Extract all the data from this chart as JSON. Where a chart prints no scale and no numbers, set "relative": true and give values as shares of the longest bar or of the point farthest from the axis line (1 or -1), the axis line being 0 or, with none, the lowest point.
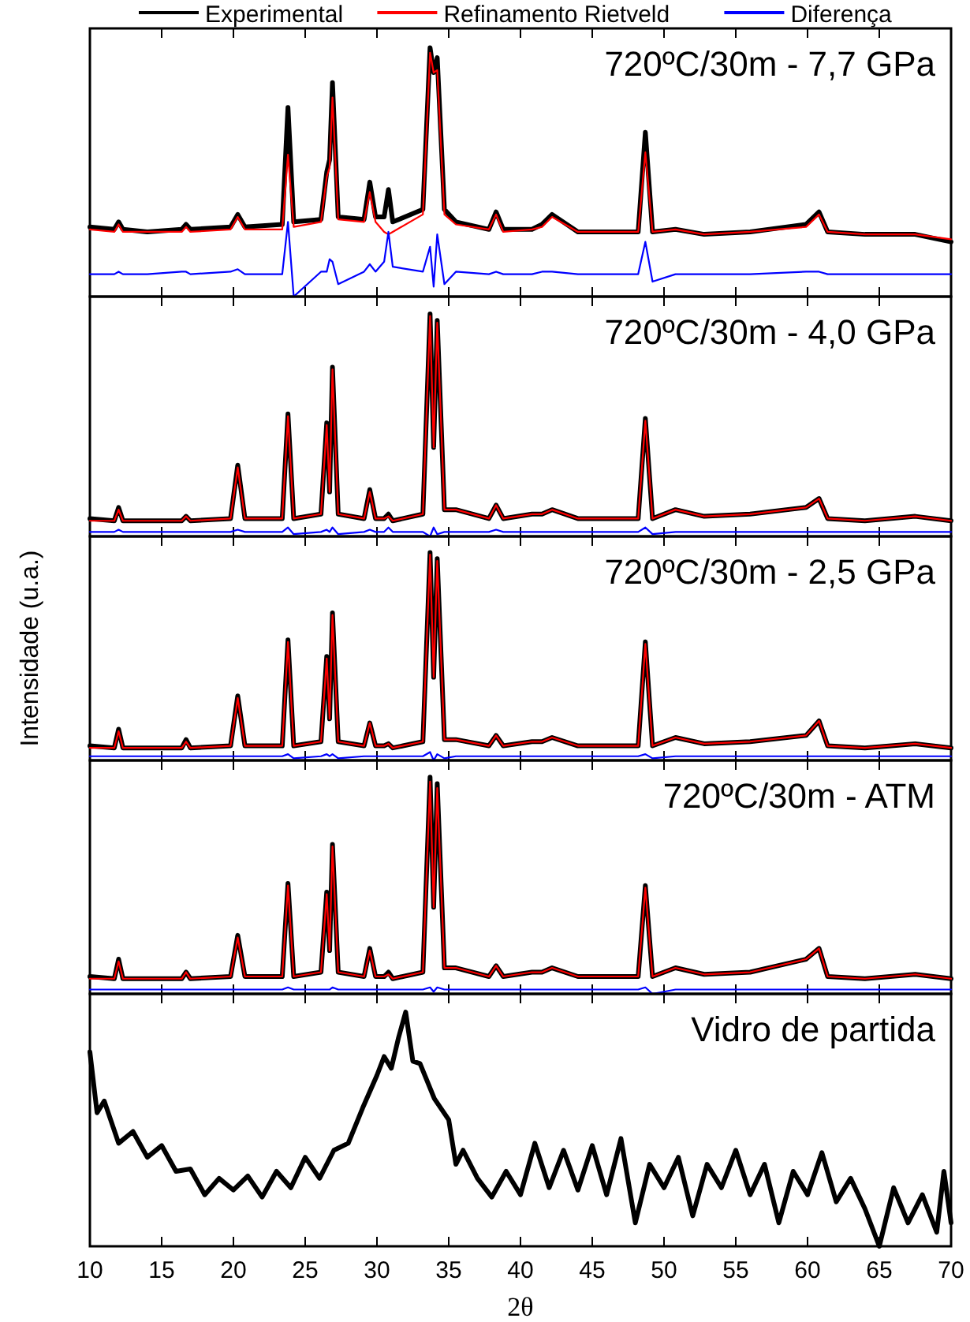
{
  "chart_data": [
    {
      "type": "line",
      "relative": true,
      "title": "720ºC/30m - 7,7 GPa",
      "legend": "top",
      "tick_labels": false,
      "xlim": [
        10,
        70
      ],
      "xticks": [
        10,
        15,
        20,
        25,
        30,
        35,
        40,
        45,
        50,
        55,
        60,
        65,
        70
      ],
      "x": [
        10,
        11.7,
        12,
        12.3,
        14,
        16.4,
        16.7,
        17,
        19.8,
        20.3,
        20.8,
        23.4,
        23.8,
        24.2,
        26.1,
        26.5,
        26.7,
        26.9,
        27.3,
        29.1,
        29.5,
        29.9,
        30.5,
        30.8,
        31.1,
        33.2,
        33.7,
        33.95,
        34.2,
        34.7,
        35.5,
        37.8,
        38.3,
        38.8,
        40.8,
        41.5,
        42.2,
        44,
        48.2,
        48.7,
        49.2,
        50.8,
        52.8,
        56,
        59.9,
        60.8,
        61.4,
        64,
        67.5,
        70
      ],
      "series": [
        {
          "name": "Experimental",
          "color": "#000000",
          "values": [
            0.28,
            0.27,
            0.3,
            0.27,
            0.26,
            0.27,
            0.29,
            0.27,
            0.28,
            0.33,
            0.28,
            0.29,
            0.76,
            0.3,
            0.31,
            0.5,
            0.55,
            0.86,
            0.32,
            0.31,
            0.46,
            0.32,
            0.32,
            0.43,
            0.3,
            0.35,
            1.0,
            0.9,
            0.96,
            0.35,
            0.3,
            0.27,
            0.34,
            0.27,
            0.27,
            0.29,
            0.33,
            0.26,
            0.26,
            0.66,
            0.26,
            0.27,
            0.25,
            0.26,
            0.29,
            0.34,
            0.26,
            0.25,
            0.25,
            0.22
          ]
        },
        {
          "name": "Refinamento Rietveld",
          "color": "#ff0000",
          "values": [
            0.27,
            0.26,
            0.29,
            0.26,
            0.26,
            0.26,
            0.28,
            0.26,
            0.27,
            0.32,
            0.27,
            0.27,
            0.57,
            0.28,
            0.3,
            0.48,
            0.52,
            0.8,
            0.31,
            0.3,
            0.42,
            0.3,
            0.26,
            0.25,
            0.26,
            0.33,
            0.98,
            0.9,
            0.91,
            0.33,
            0.29,
            0.27,
            0.33,
            0.26,
            0.27,
            0.28,
            0.32,
            0.26,
            0.26,
            0.58,
            0.26,
            0.27,
            0.25,
            0.26,
            0.28,
            0.33,
            0.26,
            0.25,
            0.25,
            0.23
          ]
        },
        {
          "name": "Diferença",
          "color": "#0000ff",
          "values": [
            0.09,
            0.09,
            0.1,
            0.09,
            0.09,
            0.1,
            0.1,
            0.09,
            0.1,
            0.11,
            0.09,
            0.09,
            0.3,
            0.0,
            0.1,
            0.1,
            0.15,
            0.14,
            0.05,
            0.1,
            0.13,
            0.1,
            0.14,
            0.26,
            0.12,
            0.1,
            0.2,
            0.04,
            0.25,
            0.05,
            0.1,
            0.09,
            0.1,
            0.09,
            0.09,
            0.1,
            0.1,
            0.09,
            0.09,
            0.22,
            0.06,
            0.09,
            0.09,
            0.09,
            0.1,
            0.1,
            0.09,
            0.09,
            0.09,
            0.09
          ]
        }
      ]
    },
    {
      "type": "line",
      "relative": true,
      "title": "720ºC/30m - 4,0 GPa",
      "tick_labels": false,
      "xlim": [
        10,
        70
      ],
      "xticks": [
        10,
        15,
        20,
        25,
        30,
        35,
        40,
        45,
        50,
        55,
        60,
        65,
        70
      ],
      "x": [
        10,
        11.7,
        12,
        12.3,
        14,
        16.4,
        16.7,
        17,
        19.8,
        20.3,
        20.8,
        23.4,
        23.8,
        24.2,
        26.1,
        26.5,
        26.7,
        26.9,
        27.3,
        29.1,
        29.5,
        29.9,
        30.5,
        30.8,
        31.1,
        33.2,
        33.7,
        33.95,
        34.2,
        34.7,
        35.5,
        37.8,
        38.3,
        38.8,
        40.8,
        41.5,
        42.2,
        44,
        48.2,
        48.7,
        49.2,
        50.8,
        52.8,
        56,
        59.9,
        60.8,
        61.4,
        64,
        67.5,
        70
      ],
      "series": [
        {
          "color": "#000000",
          "values": [
            0.08,
            0.07,
            0.13,
            0.07,
            0.07,
            0.07,
            0.09,
            0.07,
            0.08,
            0.32,
            0.08,
            0.08,
            0.55,
            0.08,
            0.1,
            0.51,
            0.2,
            0.76,
            0.1,
            0.08,
            0.21,
            0.08,
            0.08,
            0.1,
            0.07,
            0.1,
            1.0,
            0.4,
            0.97,
            0.12,
            0.12,
            0.08,
            0.14,
            0.08,
            0.1,
            0.1,
            0.12,
            0.08,
            0.08,
            0.53,
            0.08,
            0.12,
            0.09,
            0.1,
            0.13,
            0.17,
            0.08,
            0.07,
            0.09,
            0.07
          ]
        },
        {
          "color": "#ff0000",
          "values": [
            0.07,
            0.07,
            0.12,
            0.07,
            0.07,
            0.07,
            0.09,
            0.07,
            0.08,
            0.31,
            0.08,
            0.08,
            0.54,
            0.08,
            0.1,
            0.5,
            0.2,
            0.75,
            0.1,
            0.08,
            0.2,
            0.08,
            0.08,
            0.09,
            0.07,
            0.1,
            0.99,
            0.4,
            0.96,
            0.12,
            0.12,
            0.08,
            0.14,
            0.08,
            0.1,
            0.1,
            0.12,
            0.08,
            0.08,
            0.52,
            0.08,
            0.12,
            0.09,
            0.1,
            0.13,
            0.17,
            0.08,
            0.07,
            0.09,
            0.07
          ]
        },
        {
          "color": "#0000ff",
          "values": [
            0.02,
            0.02,
            0.03,
            0.02,
            0.02,
            0.02,
            0.02,
            0.02,
            0.02,
            0.03,
            0.02,
            0.02,
            0.04,
            0.01,
            0.02,
            0.03,
            0.02,
            0.04,
            0.01,
            0.02,
            0.03,
            0.02,
            0.02,
            0.04,
            0.02,
            0.02,
            0.0,
            0.04,
            0.01,
            0.02,
            0.02,
            0.02,
            0.03,
            0.02,
            0.02,
            0.02,
            0.02,
            0.02,
            0.02,
            0.04,
            0.01,
            0.02,
            0.02,
            0.02,
            0.02,
            0.02,
            0.02,
            0.02,
            0.02,
            0.02
          ]
        }
      ]
    },
    {
      "type": "line",
      "relative": true,
      "title": "720ºC/30m - 2,5 GPa",
      "ylabel": "Intensidade (u.a.)",
      "tick_labels": false,
      "xlim": [
        10,
        70
      ],
      "xticks": [
        10,
        15,
        20,
        25,
        30,
        35,
        40,
        45,
        50,
        55,
        60,
        65,
        70
      ],
      "x": [
        10,
        11.7,
        12,
        12.3,
        14,
        16.4,
        16.7,
        17,
        19.8,
        20.3,
        20.8,
        23.4,
        23.8,
        24.2,
        26.1,
        26.5,
        26.7,
        26.9,
        27.3,
        29.1,
        29.5,
        29.9,
        30.5,
        30.8,
        31.1,
        33.2,
        33.7,
        33.95,
        34.2,
        34.7,
        35.5,
        37.8,
        38.3,
        38.8,
        40.8,
        41.5,
        42.2,
        44,
        48.2,
        48.7,
        49.2,
        50.8,
        52.8,
        56,
        59.9,
        60.8,
        61.4,
        64,
        67.5,
        70
      ],
      "series": [
        {
          "color": "#000000",
          "values": [
            0.07,
            0.06,
            0.15,
            0.06,
            0.06,
            0.06,
            0.1,
            0.06,
            0.07,
            0.31,
            0.07,
            0.07,
            0.58,
            0.07,
            0.09,
            0.5,
            0.2,
            0.71,
            0.09,
            0.07,
            0.18,
            0.07,
            0.07,
            0.08,
            0.06,
            0.09,
            1.0,
            0.4,
            0.97,
            0.1,
            0.1,
            0.07,
            0.12,
            0.07,
            0.09,
            0.09,
            0.11,
            0.07,
            0.07,
            0.57,
            0.07,
            0.11,
            0.08,
            0.09,
            0.12,
            0.19,
            0.07,
            0.06,
            0.08,
            0.06
          ]
        },
        {
          "color": "#ff0000",
          "values": [
            0.06,
            0.06,
            0.14,
            0.06,
            0.06,
            0.06,
            0.09,
            0.06,
            0.07,
            0.3,
            0.07,
            0.07,
            0.57,
            0.07,
            0.09,
            0.49,
            0.2,
            0.7,
            0.09,
            0.07,
            0.18,
            0.07,
            0.07,
            0.08,
            0.06,
            0.09,
            0.99,
            0.4,
            0.96,
            0.1,
            0.1,
            0.07,
            0.12,
            0.07,
            0.09,
            0.09,
            0.11,
            0.07,
            0.07,
            0.56,
            0.07,
            0.11,
            0.08,
            0.09,
            0.12,
            0.19,
            0.07,
            0.06,
            0.08,
            0.06
          ]
        },
        {
          "color": "#0000ff",
          "values": [
            0.02,
            0.02,
            0.02,
            0.02,
            0.02,
            0.02,
            0.02,
            0.02,
            0.02,
            0.02,
            0.02,
            0.02,
            0.03,
            0.01,
            0.02,
            0.03,
            0.02,
            0.03,
            0.01,
            0.02,
            0.02,
            0.02,
            0.02,
            0.02,
            0.02,
            0.02,
            0.04,
            0.0,
            0.03,
            0.01,
            0.02,
            0.02,
            0.02,
            0.02,
            0.02,
            0.02,
            0.02,
            0.02,
            0.02,
            0.03,
            0.01,
            0.02,
            0.02,
            0.02,
            0.02,
            0.02,
            0.02,
            0.02,
            0.02,
            0.02
          ]
        }
      ]
    },
    {
      "type": "line",
      "relative": true,
      "title": "720ºC/30m - ATM",
      "tick_labels": false,
      "xlim": [
        10,
        70
      ],
      "xticks": [
        10,
        15,
        20,
        25,
        30,
        35,
        40,
        45,
        50,
        55,
        60,
        65,
        70
      ],
      "x": [
        10,
        11.7,
        12,
        12.3,
        14,
        16.4,
        16.7,
        17,
        19.8,
        20.3,
        20.8,
        23.4,
        23.8,
        24.2,
        26.1,
        26.5,
        26.7,
        26.9,
        27.3,
        29.1,
        29.5,
        29.9,
        30.5,
        30.8,
        31.1,
        33.2,
        33.7,
        33.95,
        34.2,
        34.7,
        35.5,
        37.8,
        38.3,
        38.8,
        40.8,
        41.5,
        42.2,
        44,
        48.2,
        48.7,
        49.2,
        50.8,
        52.8,
        56,
        59.9,
        60.8,
        61.4,
        64,
        67.5,
        70
      ],
      "series": [
        {
          "color": "#000000",
          "values": [
            0.08,
            0.07,
            0.16,
            0.07,
            0.07,
            0.07,
            0.1,
            0.07,
            0.08,
            0.27,
            0.08,
            0.08,
            0.51,
            0.08,
            0.1,
            0.47,
            0.2,
            0.69,
            0.1,
            0.08,
            0.21,
            0.08,
            0.08,
            0.1,
            0.07,
            0.1,
            1.0,
            0.4,
            0.97,
            0.12,
            0.12,
            0.08,
            0.13,
            0.08,
            0.1,
            0.1,
            0.12,
            0.08,
            0.08,
            0.5,
            0.08,
            0.12,
            0.09,
            0.1,
            0.16,
            0.21,
            0.08,
            0.07,
            0.09,
            0.07
          ]
        },
        {
          "color": "#ff0000",
          "values": [
            0.07,
            0.07,
            0.15,
            0.07,
            0.07,
            0.07,
            0.1,
            0.07,
            0.08,
            0.26,
            0.08,
            0.08,
            0.5,
            0.08,
            0.1,
            0.46,
            0.2,
            0.68,
            0.1,
            0.08,
            0.2,
            0.08,
            0.08,
            0.09,
            0.07,
            0.1,
            0.98,
            0.4,
            0.95,
            0.12,
            0.12,
            0.08,
            0.13,
            0.08,
            0.1,
            0.1,
            0.12,
            0.08,
            0.08,
            0.49,
            0.08,
            0.12,
            0.09,
            0.1,
            0.16,
            0.21,
            0.08,
            0.07,
            0.09,
            0.07
          ]
        },
        {
          "color": "#0000ff",
          "values": [
            0.02,
            0.02,
            0.02,
            0.02,
            0.02,
            0.02,
            0.02,
            0.02,
            0.02,
            0.02,
            0.02,
            0.02,
            0.03,
            0.02,
            0.02,
            0.02,
            0.02,
            0.03,
            0.02,
            0.02,
            0.02,
            0.02,
            0.02,
            0.02,
            0.02,
            0.02,
            0.03,
            0.01,
            0.03,
            0.02,
            0.02,
            0.02,
            0.02,
            0.02,
            0.02,
            0.02,
            0.02,
            0.02,
            0.02,
            0.03,
            0.0,
            0.02,
            0.02,
            0.02,
            0.02,
            0.02,
            0.02,
            0.02,
            0.02,
            0.02
          ]
        }
      ]
    },
    {
      "type": "line",
      "relative": true,
      "title": "Vidro de partida",
      "xlabel": "2θ",
      "tick_labels": "x",
      "xlim": [
        10,
        70
      ],
      "xticks": [
        10,
        15,
        20,
        25,
        30,
        35,
        40,
        45,
        50,
        55,
        60,
        65,
        70
      ],
      "x": [
        10,
        10.5,
        11,
        12,
        13,
        14,
        15,
        16,
        17,
        18,
        19,
        20,
        21,
        22,
        23,
        24,
        25,
        26,
        27,
        28,
        29,
        30,
        30.5,
        31,
        31.5,
        32,
        32.5,
        33,
        34,
        35,
        35.5,
        36,
        37,
        38,
        39,
        40,
        41,
        42,
        43,
        44,
        45,
        46,
        47,
        48,
        49,
        50,
        51,
        52,
        53,
        54,
        55,
        56,
        57,
        58,
        59,
        60,
        61,
        62,
        63,
        64,
        65,
        66,
        67,
        68,
        69,
        69.5,
        70
      ],
      "series": [
        {
          "color": "#000000",
          "values": [
            0.83,
            0.57,
            0.62,
            0.44,
            0.49,
            0.38,
            0.43,
            0.32,
            0.33,
            0.22,
            0.29,
            0.24,
            0.3,
            0.21,
            0.32,
            0.25,
            0.38,
            0.29,
            0.41,
            0.44,
            0.59,
            0.73,
            0.81,
            0.76,
            0.89,
            1.0,
            0.79,
            0.78,
            0.63,
            0.54,
            0.35,
            0.41,
            0.29,
            0.21,
            0.32,
            0.22,
            0.44,
            0.25,
            0.41,
            0.24,
            0.43,
            0.22,
            0.46,
            0.1,
            0.35,
            0.25,
            0.38,
            0.13,
            0.35,
            0.25,
            0.41,
            0.22,
            0.35,
            0.1,
            0.32,
            0.22,
            0.4,
            0.19,
            0.29,
            0.16,
            0.0,
            0.25,
            0.1,
            0.22,
            0.06,
            0.32,
            0.1
          ]
        }
      ]
    }
  ]
}
